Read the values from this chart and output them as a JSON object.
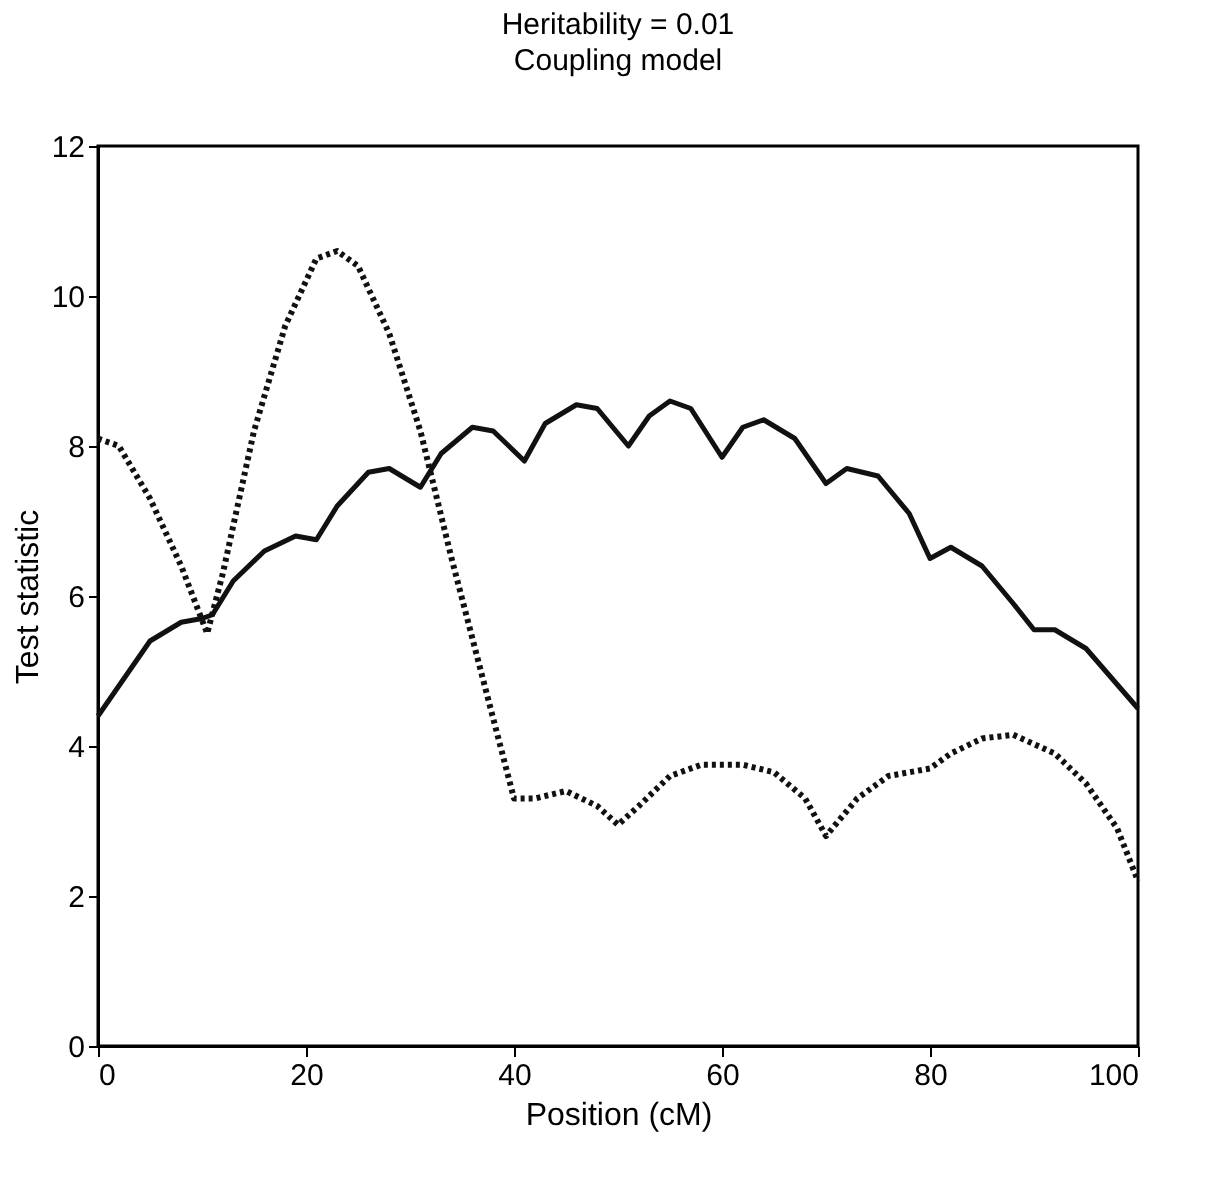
{
  "chart_data": {
    "type": "line",
    "title": "Heritability = 0.01",
    "subtitle": "Coupling model",
    "xlabel": "Position (cM)",
    "ylabel": "Test statistic",
    "xlim": [
      0,
      100
    ],
    "xticks": [
      0,
      20,
      40,
      60,
      80,
      100
    ],
    "ylim": [
      0,
      12
    ],
    "yticks": [
      0,
      2,
      4,
      6,
      8,
      10,
      12
    ],
    "grid": false,
    "series": [
      {
        "color": "#111111",
        "line_style": "solid",
        "x": [
          0,
          3,
          5,
          8,
          10,
          11,
          13,
          16,
          19,
          21,
          23,
          26,
          28,
          31,
          33,
          36,
          38,
          41,
          43,
          46,
          48,
          51,
          53,
          55,
          57,
          60,
          62,
          64,
          67,
          70,
          72,
          75,
          78,
          80,
          82,
          85,
          88,
          90,
          92,
          95,
          100
        ],
        "values": [
          4.4,
          5.0,
          5.4,
          5.65,
          5.7,
          5.75,
          6.2,
          6.6,
          6.8,
          6.75,
          7.2,
          7.65,
          7.7,
          7.45,
          7.9,
          8.25,
          8.2,
          7.8,
          8.3,
          8.55,
          8.5,
          8.0,
          8.4,
          8.6,
          8.5,
          7.85,
          8.25,
          8.35,
          8.1,
          7.5,
          7.7,
          7.6,
          7.1,
          6.5,
          6.65,
          6.4,
          5.9,
          5.55,
          5.55,
          5.3,
          4.5
        ]
      },
      {
        "color": "#111111",
        "line_style": "dotted",
        "x": [
          0,
          2,
          5,
          8,
          10.5,
          12,
          15,
          18,
          21,
          23,
          25,
          28,
          31,
          34,
          37,
          40,
          42,
          45,
          48,
          50,
          52,
          55,
          58,
          62,
          65,
          68,
          70,
          73,
          76,
          80,
          82,
          85,
          88,
          92,
          95,
          98,
          100
        ],
        "values": [
          8.1,
          8.0,
          7.3,
          6.4,
          5.5,
          6.3,
          8.2,
          9.6,
          10.5,
          10.6,
          10.4,
          9.5,
          8.2,
          6.5,
          4.9,
          3.3,
          3.3,
          3.4,
          3.2,
          2.95,
          3.2,
          3.6,
          3.75,
          3.75,
          3.65,
          3.3,
          2.8,
          3.3,
          3.6,
          3.7,
          3.9,
          4.1,
          4.15,
          3.9,
          3.5,
          2.9,
          2.2
        ]
      }
    ]
  }
}
